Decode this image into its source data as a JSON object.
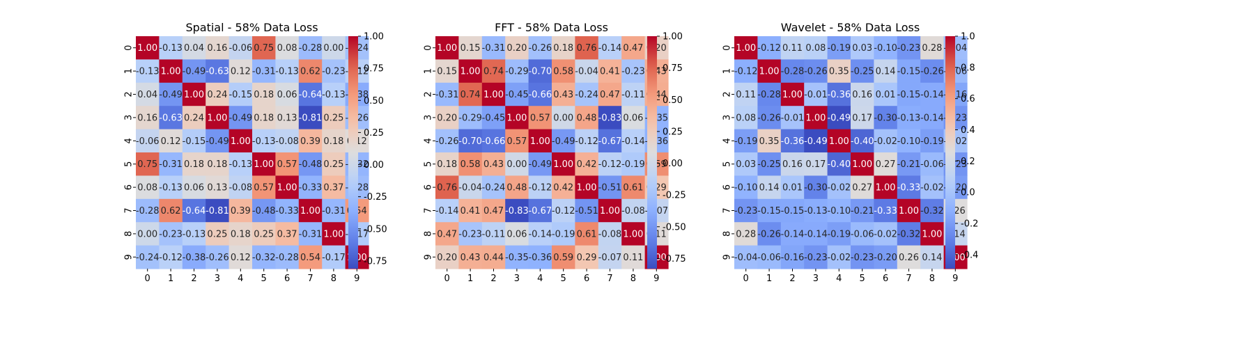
{
  "chart_data": [
    {
      "type": "heatmap",
      "title": "Spatial - 58% Data Loss",
      "x_ticks": [
        "0",
        "1",
        "2",
        "3",
        "4",
        "5",
        "6",
        "7",
        "8",
        "9"
      ],
      "y_ticks": [
        "0",
        "1",
        "2",
        "3",
        "4",
        "5",
        "6",
        "7",
        "8",
        "9"
      ],
      "colormap": "coolwarm",
      "vmin": -0.81,
      "vmax": 1.0,
      "colorbar_ticks": [
        "-0.75",
        "-0.50",
        "-0.25",
        "0.00",
        "0.25",
        "0.50",
        "0.75",
        "1.00"
      ],
      "colorbar_tick_values": [
        -0.75,
        -0.5,
        -0.25,
        0,
        0.25,
        0.5,
        0.75,
        1.0
      ],
      "values": [
        [
          1.0,
          -0.13,
          0.04,
          0.16,
          -0.06,
          0.75,
          0.08,
          -0.28,
          0.0,
          -0.24
        ],
        [
          -0.13,
          1.0,
          -0.49,
          -0.63,
          0.12,
          -0.31,
          -0.13,
          0.62,
          -0.23,
          -0.12
        ],
        [
          0.04,
          -0.49,
          1.0,
          0.24,
          -0.15,
          0.18,
          0.06,
          -0.64,
          -0.13,
          -0.38
        ],
        [
          0.16,
          -0.63,
          0.24,
          1.0,
          -0.49,
          0.18,
          0.13,
          -0.81,
          0.25,
          -0.26
        ],
        [
          -0.06,
          0.12,
          -0.15,
          -0.49,
          1.0,
          -0.13,
          -0.08,
          0.39,
          0.18,
          0.12
        ],
        [
          0.75,
          -0.31,
          0.18,
          0.18,
          -0.13,
          1.0,
          0.57,
          -0.48,
          0.25,
          -0.32
        ],
        [
          0.08,
          -0.13,
          0.06,
          0.13,
          -0.08,
          0.57,
          1.0,
          -0.33,
          0.37,
          -0.28
        ],
        [
          -0.28,
          0.62,
          -0.64,
          -0.81,
          0.39,
          -0.48,
          -0.33,
          1.0,
          -0.31,
          0.54
        ],
        [
          0.0,
          -0.23,
          -0.13,
          0.25,
          0.18,
          0.25,
          0.37,
          -0.31,
          1.0,
          -0.17
        ],
        [
          -0.24,
          -0.12,
          -0.38,
          -0.26,
          0.12,
          -0.32,
          -0.28,
          0.54,
          -0.17,
          1.0
        ]
      ]
    },
    {
      "type": "heatmap",
      "title": "FFT - 58% Data Loss",
      "x_ticks": [
        "0",
        "1",
        "2",
        "3",
        "4",
        "5",
        "6",
        "7",
        "8",
        "9"
      ],
      "y_ticks": [
        "0",
        "1",
        "2",
        "3",
        "4",
        "5",
        "6",
        "7",
        "8",
        "9"
      ],
      "colormap": "coolwarm",
      "vmin": -0.83,
      "vmax": 1.0,
      "colorbar_ticks": [
        "-0.75",
        "-0.50",
        "-0.25",
        "0.00",
        "0.25",
        "0.50",
        "0.75",
        "1.00"
      ],
      "colorbar_tick_values": [
        -0.75,
        -0.5,
        -0.25,
        0,
        0.25,
        0.5,
        0.75,
        1.0
      ],
      "values": [
        [
          1.0,
          0.15,
          -0.31,
          0.2,
          -0.26,
          0.18,
          0.76,
          -0.14,
          0.47,
          0.2
        ],
        [
          0.15,
          1.0,
          0.74,
          -0.29,
          -0.7,
          0.58,
          -0.04,
          0.41,
          -0.23,
          0.43
        ],
        [
          -0.31,
          0.74,
          1.0,
          -0.45,
          -0.66,
          0.43,
          -0.24,
          0.47,
          -0.11,
          0.44
        ],
        [
          0.2,
          -0.29,
          -0.45,
          1.0,
          0.57,
          0.0,
          0.48,
          -0.83,
          0.06,
          -0.35
        ],
        [
          -0.26,
          -0.7,
          -0.66,
          0.57,
          1.0,
          -0.49,
          -0.12,
          -0.67,
          -0.14,
          -0.36
        ],
        [
          0.18,
          0.58,
          0.43,
          0.0,
          -0.49,
          1.0,
          0.42,
          -0.12,
          -0.19,
          0.59
        ],
        [
          0.76,
          -0.04,
          -0.24,
          0.48,
          -0.12,
          0.42,
          1.0,
          -0.51,
          0.61,
          0.29
        ],
        [
          -0.14,
          0.41,
          0.47,
          -0.83,
          -0.67,
          -0.12,
          -0.51,
          1.0,
          -0.08,
          -0.07
        ],
        [
          0.47,
          -0.23,
          -0.11,
          0.06,
          -0.14,
          -0.19,
          0.61,
          -0.08,
          1.0,
          0.11
        ],
        [
          0.2,
          0.43,
          0.44,
          -0.35,
          -0.36,
          0.59,
          0.29,
          -0.07,
          0.11,
          1.0
        ]
      ]
    },
    {
      "type": "heatmap",
      "title": "Wavelet - 58% Data Loss",
      "x_ticks": [
        "0",
        "1",
        "2",
        "3",
        "4",
        "5",
        "6",
        "7",
        "8",
        "9"
      ],
      "y_ticks": [
        "0",
        "1",
        "2",
        "3",
        "4",
        "5",
        "6",
        "7",
        "8",
        "9"
      ],
      "colormap": "coolwarm",
      "vmin": -0.49,
      "vmax": 1.0,
      "colorbar_ticks": [
        "-0.4",
        "-0.2",
        "0.0",
        "0.2",
        "0.4",
        "0.6",
        "0.8",
        "1.0"
      ],
      "colorbar_tick_values": [
        -0.4,
        -0.2,
        0,
        0.2,
        0.4,
        0.6,
        0.8,
        1.0
      ],
      "values": [
        [
          1.0,
          -0.12,
          0.11,
          0.08,
          -0.19,
          0.03,
          -0.1,
          -0.23,
          0.28,
          -0.04
        ],
        [
          -0.12,
          1.0,
          -0.28,
          -0.26,
          0.35,
          -0.25,
          0.14,
          -0.15,
          -0.26,
          -0.06
        ],
        [
          0.11,
          -0.28,
          1.0,
          -0.01,
          -0.36,
          0.16,
          0.01,
          -0.15,
          -0.14,
          -0.16
        ],
        [
          0.08,
          -0.26,
          -0.01,
          1.0,
          -0.49,
          0.17,
          -0.3,
          -0.13,
          -0.14,
          -0.23
        ],
        [
          -0.19,
          0.35,
          -0.36,
          -0.49,
          1.0,
          -0.4,
          -0.02,
          -0.1,
          -0.19,
          -0.02
        ],
        [
          0.03,
          -0.25,
          0.16,
          0.17,
          -0.4,
          1.0,
          0.27,
          -0.21,
          -0.06,
          -0.23
        ],
        [
          -0.1,
          0.14,
          0.01,
          -0.3,
          -0.02,
          0.27,
          1.0,
          -0.33,
          -0.02,
          -0.2
        ],
        [
          -0.23,
          -0.15,
          -0.15,
          -0.13,
          -0.1,
          -0.21,
          -0.33,
          1.0,
          -0.32,
          0.26
        ],
        [
          0.28,
          -0.26,
          -0.14,
          -0.14,
          -0.19,
          -0.06,
          -0.02,
          -0.32,
          1.0,
          0.14
        ],
        [
          -0.04,
          -0.06,
          -0.16,
          -0.23,
          -0.02,
          -0.23,
          -0.2,
          0.26,
          0.14,
          1.0
        ]
      ]
    }
  ]
}
